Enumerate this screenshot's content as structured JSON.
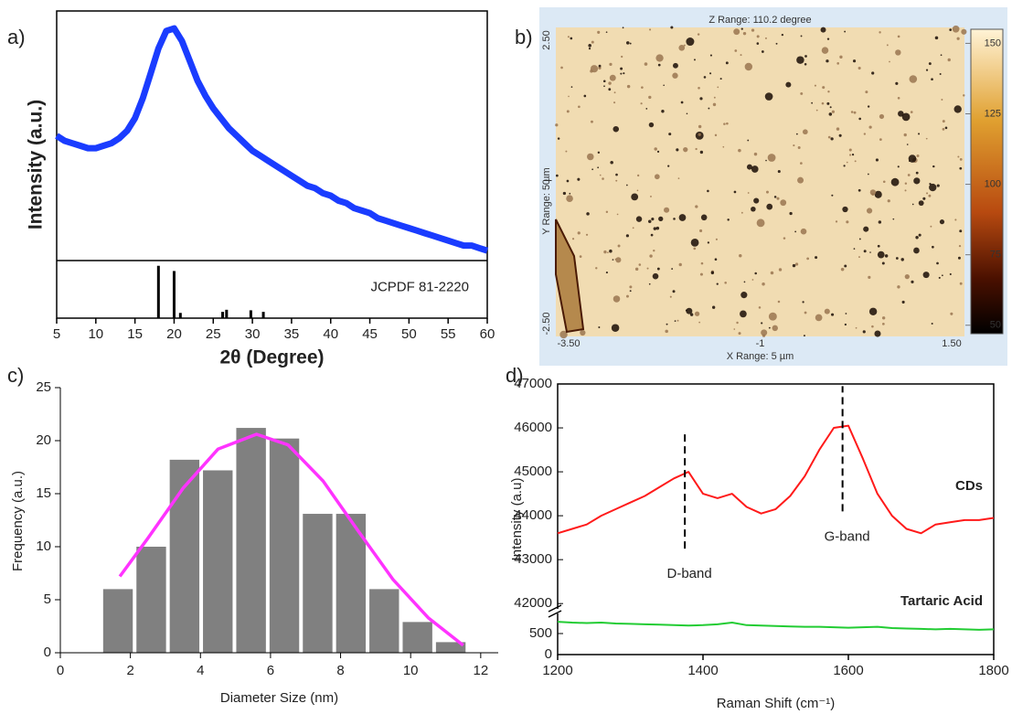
{
  "chart_data": [
    {
      "type": "line",
      "label": "a)",
      "xlabel": "2θ (Degree)",
      "ylabel": "Intensity (a.u.)",
      "x": [
        5,
        6,
        7,
        8,
        9,
        10,
        11,
        12,
        13,
        14,
        15,
        16,
        17,
        18,
        19,
        20,
        21,
        22,
        23,
        24,
        25,
        26,
        27,
        28,
        29,
        30,
        31,
        32,
        33,
        34,
        35,
        36,
        37,
        38,
        39,
        40,
        41,
        42,
        43,
        44,
        45,
        46,
        47,
        48,
        49,
        50,
        51,
        52,
        53,
        54,
        55,
        56,
        57,
        58,
        59,
        60
      ],
      "series": [
        {
          "color": "#1a3cff",
          "values": [
            50,
            48,
            47,
            46,
            45,
            45,
            46,
            47,
            49,
            52,
            57,
            65,
            75,
            85,
            92,
            93,
            88,
            80,
            72,
            66,
            61,
            57,
            53,
            50,
            47,
            44,
            42,
            40,
            38,
            36,
            34,
            32,
            30,
            29,
            27,
            26,
            24,
            23,
            21,
            20,
            19,
            17,
            16,
            15,
            14,
            13,
            12,
            11,
            10,
            9,
            8,
            7,
            6,
            6,
            5,
            4
          ]
        }
      ],
      "xlim": [
        5,
        60
      ],
      "xticks": [
        5,
        10,
        15,
        20,
        25,
        30,
        35,
        40,
        45,
        50,
        55,
        60
      ],
      "ylim": [
        0,
        100
      ],
      "reference": {
        "label": "JCPDF 81-2220",
        "color": "#000000",
        "x": [
          18,
          20,
          20.8,
          26.2,
          26.7,
          29.8,
          31.4
        ],
        "values": [
          100,
          90,
          10,
          12,
          16,
          15,
          12
        ],
        "ylim": [
          0,
          110
        ]
      }
    },
    {
      "type": "image",
      "label": "b)",
      "title": "Z Range: 110.2 degree",
      "xlabel": "X Range: 5 µm",
      "ylabel": "Y Range: 5 µm",
      "xlim": [
        -3.5,
        1.5
      ],
      "xticks": [
        {
          "value": -3.5,
          "label": "-3.50"
        },
        -1,
        {
          "value": 1.5,
          "label": "1.50"
        }
      ],
      "ylim": [
        -2.5,
        2.5
      ],
      "yticks": [
        {
          "value": 2.5,
          "label": "2.50"
        },
        0,
        {
          "value": -2.5,
          "label": "-2.50"
        }
      ],
      "colorbar": {
        "clim": [
          47,
          155
        ],
        "ticks": [
          150,
          125,
          100,
          75,
          50
        ]
      }
    },
    {
      "type": "histogram",
      "label": "c)",
      "xlabel": "Diameter Size (nm)",
      "ylabel": "Frequency (a.u.)",
      "bins": [
        1.17,
        2.12,
        3.07,
        4.02,
        4.97,
        5.92,
        6.87,
        7.82,
        8.77,
        9.72,
        10.67,
        11.62
      ],
      "values": [
        6,
        10,
        18.2,
        17.2,
        21.2,
        20.2,
        13.1,
        13.1,
        6,
        2.9,
        1
      ],
      "color": "#808080",
      "xlim": [
        0,
        12.5
      ],
      "xticks": [
        0,
        2,
        4,
        6,
        8,
        10,
        12
      ],
      "ylim": [
        0,
        25
      ],
      "yticks": [
        0,
        5,
        10,
        15,
        20,
        25
      ],
      "fit": {
        "color": "#ff33ff",
        "x": [
          1.7,
          2.5,
          3.5,
          4.5,
          5.6,
          6.5,
          7.5,
          8.5,
          9.5,
          10.5,
          11.5
        ],
        "values": [
          7.2,
          10.8,
          15.5,
          19.2,
          20.6,
          19.6,
          16.2,
          11.5,
          6.9,
          3.3,
          0.7
        ]
      }
    },
    {
      "type": "line",
      "label": "d)",
      "xlabel": "Raman Shift (cm⁻¹)",
      "ylabel": "Intensity (a.u)",
      "x": [
        1200,
        1220,
        1240,
        1260,
        1280,
        1300,
        1320,
        1340,
        1360,
        1380,
        1400,
        1420,
        1440,
        1460,
        1480,
        1500,
        1520,
        1540,
        1560,
        1580,
        1600,
        1620,
        1640,
        1660,
        1680,
        1700,
        1720,
        1740,
        1760,
        1780,
        1800
      ],
      "series": [
        {
          "name": "CDs",
          "color": "#ff1a1a",
          "values": [
            43600,
            43700,
            43800,
            44000,
            44150,
            44300,
            44450,
            44650,
            44850,
            45000,
            44500,
            44400,
            44500,
            44200,
            44050,
            44150,
            44450,
            44900,
            45500,
            46000,
            46050,
            45300,
            44500,
            44000,
            43700,
            43600,
            43800,
            43850,
            43900,
            43900,
            43950
          ]
        },
        {
          "name": "Tartaric Acid",
          "color": "#22cc33",
          "axis": "lower",
          "values": [
            780,
            760,
            750,
            760,
            740,
            730,
            720,
            710,
            700,
            690,
            700,
            720,
            760,
            700,
            690,
            680,
            670,
            660,
            660,
            650,
            640,
            650,
            660,
            630,
            620,
            610,
            600,
            610,
            600,
            590,
            600
          ]
        }
      ],
      "name_color": "#6b6bdc",
      "xlim": [
        1200,
        1800
      ],
      "xticks": [
        1200,
        1400,
        1600,
        1800
      ],
      "ylim": [
        41900,
        47000
      ],
      "yticks": [
        42000,
        43000,
        44000,
        45000,
        46000,
        47000
      ],
      "lower_ylim": [
        0,
        1000
      ],
      "lower_yticks": [
        0,
        500
      ],
      "annotations": [
        {
          "text": "D-band",
          "x": 1375,
          "y": [
            43250,
            45950
          ]
        },
        {
          "text": "G-band",
          "x": 1592,
          "y": [
            44100,
            46950
          ]
        }
      ]
    }
  ]
}
